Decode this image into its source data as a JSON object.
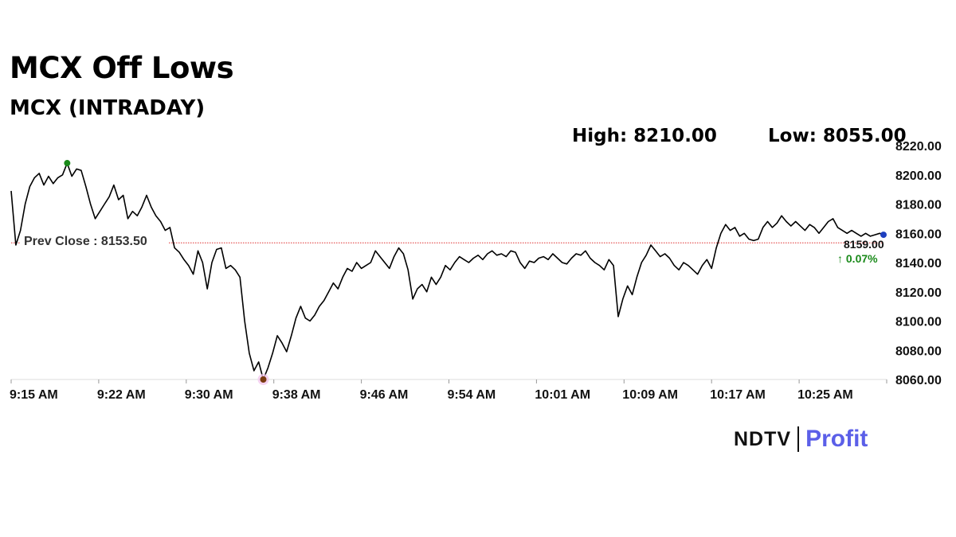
{
  "headline": "MCX Off Lows",
  "subheadline": "MCX (INTRADAY)",
  "stats": {
    "high_label": "High: 8210.00",
    "low_label": "Low: 8055.00"
  },
  "brand": {
    "name_left": "NDTV",
    "name_right": "Profit"
  },
  "colors": {
    "line": "#000000",
    "prev_close_line": "#e03030",
    "high_marker": "#1a8a1a",
    "low_marker": "#7a3b10",
    "current_marker": "#1f3fbf",
    "change_up": "#1a8a1a"
  },
  "chart_data": {
    "type": "line",
    "title": "",
    "xlabel": "",
    "ylabel": "",
    "ylim": [
      8060,
      8220
    ],
    "y_ticks": [
      "8060.00",
      "8080.00",
      "8100.00",
      "8120.00",
      "8140.00",
      "8160.00",
      "8180.00",
      "8200.00",
      "8220.00"
    ],
    "x_range": [
      0,
      75
    ],
    "x_ticks": [
      {
        "label": "9:15 AM",
        "m": 0
      },
      {
        "label": "9:22 AM",
        "m": 7.5
      },
      {
        "label": "9:30 AM",
        "m": 15
      },
      {
        "label": "9:38 AM",
        "m": 22.5
      },
      {
        "label": "9:46 AM",
        "m": 30
      },
      {
        "label": "9:54 AM",
        "m": 37.5
      },
      {
        "label": "10:01 AM",
        "m": 45
      },
      {
        "label": "10:09 AM",
        "m": 52.5
      },
      {
        "label": "10:17 AM",
        "m": 60
      },
      {
        "label": "10:25 AM",
        "m": 67.5
      }
    ],
    "prev_close": 8153.5,
    "prev_close_label": "Prev Close : 8153.50",
    "last_value_label": "8159.00",
    "change_label": "↑ 0.07%",
    "series": [
      {
        "points": [
          [
            0.0,
            8189
          ],
          [
            0.4,
            8152
          ],
          [
            0.8,
            8162
          ],
          [
            1.2,
            8180
          ],
          [
            1.6,
            8192
          ],
          [
            2.0,
            8198
          ],
          [
            2.4,
            8201
          ],
          [
            2.8,
            8193
          ],
          [
            3.2,
            8199
          ],
          [
            3.6,
            8194
          ],
          [
            4.0,
            8198
          ],
          [
            4.4,
            8200
          ],
          [
            4.8,
            8208
          ],
          [
            5.2,
            8199
          ],
          [
            5.6,
            8204
          ],
          [
            6.0,
            8203
          ],
          [
            6.4,
            8192
          ],
          [
            6.8,
            8180
          ],
          [
            7.2,
            8170
          ],
          [
            7.6,
            8175
          ],
          [
            8.0,
            8180
          ],
          [
            8.4,
            8185
          ],
          [
            8.8,
            8193
          ],
          [
            9.2,
            8183
          ],
          [
            9.6,
            8186
          ],
          [
            10.0,
            8170
          ],
          [
            10.4,
            8175
          ],
          [
            10.8,
            8172
          ],
          [
            11.2,
            8178
          ],
          [
            11.6,
            8186
          ],
          [
            12.0,
            8178
          ],
          [
            12.4,
            8172
          ],
          [
            12.8,
            8168
          ],
          [
            13.2,
            8162
          ],
          [
            13.6,
            8164
          ],
          [
            14.0,
            8150
          ],
          [
            14.4,
            8147
          ],
          [
            14.8,
            8142
          ],
          [
            15.2,
            8138
          ],
          [
            15.6,
            8132
          ],
          [
            16.0,
            8148
          ],
          [
            16.4,
            8140
          ],
          [
            16.8,
            8122
          ],
          [
            17.2,
            8140
          ],
          [
            17.6,
            8149
          ],
          [
            18.0,
            8150
          ],
          [
            18.4,
            8136
          ],
          [
            18.8,
            8138
          ],
          [
            19.2,
            8135
          ],
          [
            19.6,
            8130
          ],
          [
            20.0,
            8100
          ],
          [
            20.4,
            8078
          ],
          [
            20.8,
            8066
          ],
          [
            21.2,
            8072
          ],
          [
            21.6,
            8060
          ],
          [
            22.0,
            8068
          ],
          [
            22.4,
            8078
          ],
          [
            22.8,
            8090
          ],
          [
            23.2,
            8085
          ],
          [
            23.6,
            8079
          ],
          [
            24.0,
            8090
          ],
          [
            24.4,
            8102
          ],
          [
            24.8,
            8110
          ],
          [
            25.2,
            8102
          ],
          [
            25.6,
            8100
          ],
          [
            26.0,
            8104
          ],
          [
            26.4,
            8110
          ],
          [
            26.8,
            8114
          ],
          [
            27.2,
            8120
          ],
          [
            27.6,
            8126
          ],
          [
            28.0,
            8122
          ],
          [
            28.4,
            8130
          ],
          [
            28.8,
            8136
          ],
          [
            29.2,
            8134
          ],
          [
            29.6,
            8140
          ],
          [
            30.0,
            8136
          ],
          [
            30.4,
            8138
          ],
          [
            30.8,
            8140
          ],
          [
            31.2,
            8148
          ],
          [
            31.6,
            8144
          ],
          [
            32.0,
            8140
          ],
          [
            32.4,
            8136
          ],
          [
            32.8,
            8144
          ],
          [
            33.2,
            8150
          ],
          [
            33.6,
            8146
          ],
          [
            34.0,
            8135
          ],
          [
            34.4,
            8115
          ],
          [
            34.8,
            8122
          ],
          [
            35.2,
            8125
          ],
          [
            35.6,
            8120
          ],
          [
            36.0,
            8130
          ],
          [
            36.4,
            8125
          ],
          [
            36.8,
            8130
          ],
          [
            37.2,
            8138
          ],
          [
            37.6,
            8135
          ],
          [
            38.0,
            8140
          ],
          [
            38.4,
            8144
          ],
          [
            38.8,
            8142
          ],
          [
            39.2,
            8140
          ],
          [
            39.6,
            8143
          ],
          [
            40.0,
            8145
          ],
          [
            40.4,
            8142
          ],
          [
            40.8,
            8146
          ],
          [
            41.2,
            8148
          ],
          [
            41.6,
            8145
          ],
          [
            42.0,
            8146
          ],
          [
            42.4,
            8144
          ],
          [
            42.8,
            8148
          ],
          [
            43.2,
            8147
          ],
          [
            43.6,
            8140
          ],
          [
            44.0,
            8136
          ],
          [
            44.4,
            8141
          ],
          [
            44.8,
            8140
          ],
          [
            45.2,
            8143
          ],
          [
            45.6,
            8144
          ],
          [
            46.0,
            8142
          ],
          [
            46.4,
            8146
          ],
          [
            46.8,
            8143
          ],
          [
            47.2,
            8140
          ],
          [
            47.6,
            8139
          ],
          [
            48.0,
            8143
          ],
          [
            48.4,
            8146
          ],
          [
            48.8,
            8145
          ],
          [
            49.2,
            8148
          ],
          [
            49.6,
            8143
          ],
          [
            50.0,
            8140
          ],
          [
            50.4,
            8138
          ],
          [
            50.8,
            8135
          ],
          [
            51.2,
            8142
          ],
          [
            51.6,
            8138
          ],
          [
            52.0,
            8103
          ],
          [
            52.4,
            8115
          ],
          [
            52.8,
            8124
          ],
          [
            53.2,
            8118
          ],
          [
            53.6,
            8130
          ],
          [
            54.0,
            8140
          ],
          [
            54.4,
            8145
          ],
          [
            54.8,
            8152
          ],
          [
            55.2,
            8148
          ],
          [
            55.6,
            8144
          ],
          [
            56.0,
            8146
          ],
          [
            56.4,
            8143
          ],
          [
            56.8,
            8138
          ],
          [
            57.2,
            8135
          ],
          [
            57.6,
            8140
          ],
          [
            58.0,
            8138
          ],
          [
            58.4,
            8135
          ],
          [
            58.8,
            8132
          ],
          [
            59.2,
            8138
          ],
          [
            59.6,
            8142
          ],
          [
            60.0,
            8136
          ],
          [
            60.4,
            8150
          ],
          [
            60.8,
            8160
          ],
          [
            61.2,
            8166
          ],
          [
            61.6,
            8162
          ],
          [
            62.0,
            8164
          ],
          [
            62.4,
            8158
          ],
          [
            62.8,
            8160
          ],
          [
            63.2,
            8156
          ],
          [
            63.6,
            8155
          ],
          [
            64.0,
            8156
          ],
          [
            64.4,
            8164
          ],
          [
            64.8,
            8168
          ],
          [
            65.2,
            8164
          ],
          [
            65.6,
            8167
          ],
          [
            66.0,
            8172
          ],
          [
            66.4,
            8168
          ],
          [
            66.8,
            8165
          ],
          [
            67.2,
            8168
          ],
          [
            67.6,
            8165
          ],
          [
            68.0,
            8162
          ],
          [
            68.4,
            8166
          ],
          [
            68.8,
            8164
          ],
          [
            69.2,
            8160
          ],
          [
            69.6,
            8164
          ],
          [
            70.0,
            8168
          ],
          [
            70.4,
            8170
          ],
          [
            70.8,
            8164
          ],
          [
            71.2,
            8162
          ],
          [
            71.6,
            8160
          ],
          [
            72.0,
            8162
          ],
          [
            72.4,
            8160
          ],
          [
            72.8,
            8158
          ],
          [
            73.2,
            8160
          ],
          [
            73.6,
            8158
          ],
          [
            74.0,
            8159
          ],
          [
            74.4,
            8160
          ],
          [
            74.8,
            8159
          ]
        ]
      }
    ],
    "markers": [
      {
        "kind": "high",
        "m": 4.8,
        "v": 8208
      },
      {
        "kind": "low",
        "m": 21.6,
        "v": 8060
      },
      {
        "kind": "current",
        "m": 75,
        "v": 8159
      }
    ]
  }
}
